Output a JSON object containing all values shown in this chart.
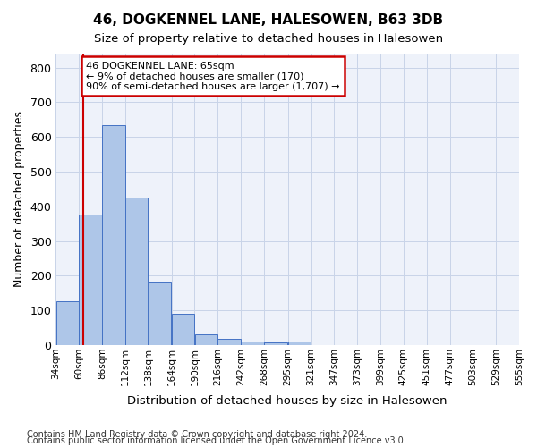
{
  "title": "46, DOGKENNEL LANE, HALESOWEN, B63 3DB",
  "subtitle": "Size of property relative to detached houses in Halesowen",
  "xlabel": "Distribution of detached houses by size in Halesowen",
  "ylabel": "Number of detached properties",
  "bar_color": "#aec6e8",
  "bar_edge_color": "#4472c4",
  "grid_color": "#c8d4e8",
  "background_color": "#eef2fa",
  "annotation_text": "46 DOGKENNEL LANE: 65sqm\n← 9% of detached houses are smaller (170)\n90% of semi-detached houses are larger (1,707) →",
  "annotation_box_color": "#ffffff",
  "annotation_border_color": "#cc0000",
  "vline_x": 65,
  "vline_color": "#cc0000",
  "categories": [
    "34sqm",
    "60sqm",
    "86sqm",
    "112sqm",
    "138sqm",
    "164sqm",
    "190sqm",
    "216sqm",
    "242sqm",
    "268sqm",
    "295sqm",
    "321sqm",
    "347sqm",
    "373sqm",
    "399sqm",
    "425sqm",
    "451sqm",
    "477sqm",
    "503sqm",
    "529sqm",
    "555sqm"
  ],
  "bar_left_edges": [
    34,
    60,
    86,
    112,
    138,
    164,
    190,
    216,
    242,
    268,
    295,
    321,
    347,
    373,
    399,
    425,
    451,
    477,
    503,
    529
  ],
  "bar_widths": [
    26,
    26,
    26,
    26,
    26,
    26,
    26,
    26,
    26,
    27,
    26,
    26,
    26,
    26,
    26,
    26,
    26,
    26,
    26,
    26
  ],
  "values": [
    125,
    375,
    635,
    425,
    183,
    90,
    32,
    17,
    10,
    8,
    10,
    0,
    0,
    0,
    0,
    0,
    0,
    0,
    0,
    0
  ],
  "ylim": [
    0,
    840
  ],
  "xlim": [
    34,
    555
  ],
  "yticks": [
    0,
    100,
    200,
    300,
    400,
    500,
    600,
    700,
    800
  ],
  "footnote1": "Contains HM Land Registry data © Crown copyright and database right 2024.",
  "footnote2": "Contains public sector information licensed under the Open Government Licence v3.0."
}
